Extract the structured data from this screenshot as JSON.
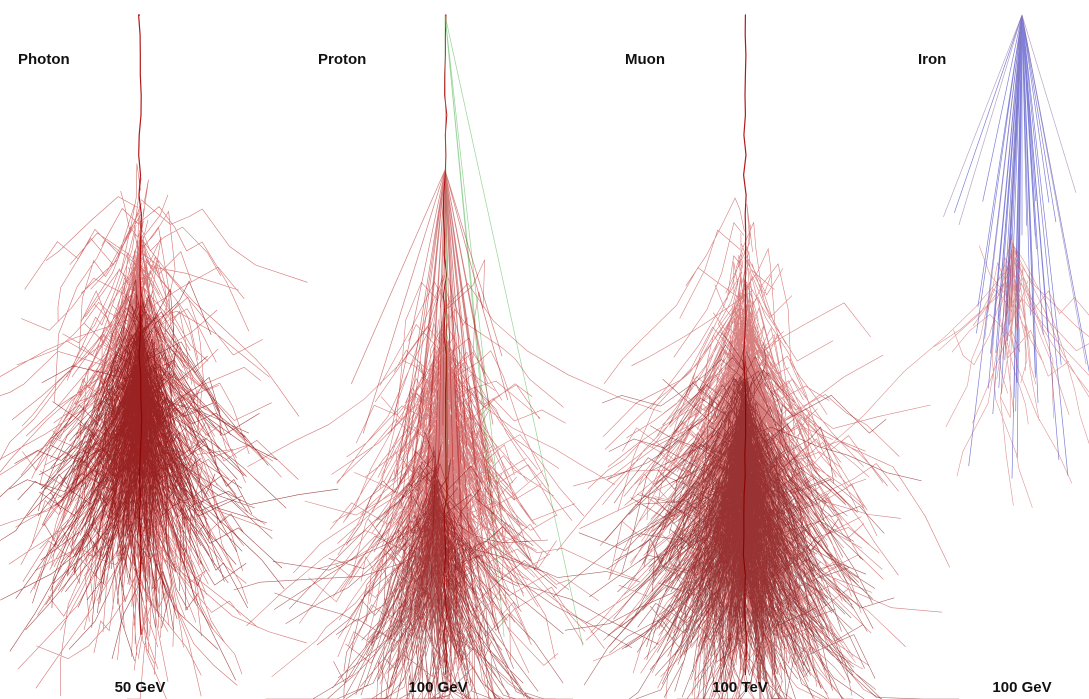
{
  "panels": [
    {
      "label": "Photon",
      "energy": "50 GeV"
    },
    {
      "label": "Proton",
      "energy": "100 GeV"
    },
    {
      "label": "Muon",
      "energy": "100 TeV"
    },
    {
      "label": "Iron",
      "energy": "100 GeV"
    }
  ]
}
